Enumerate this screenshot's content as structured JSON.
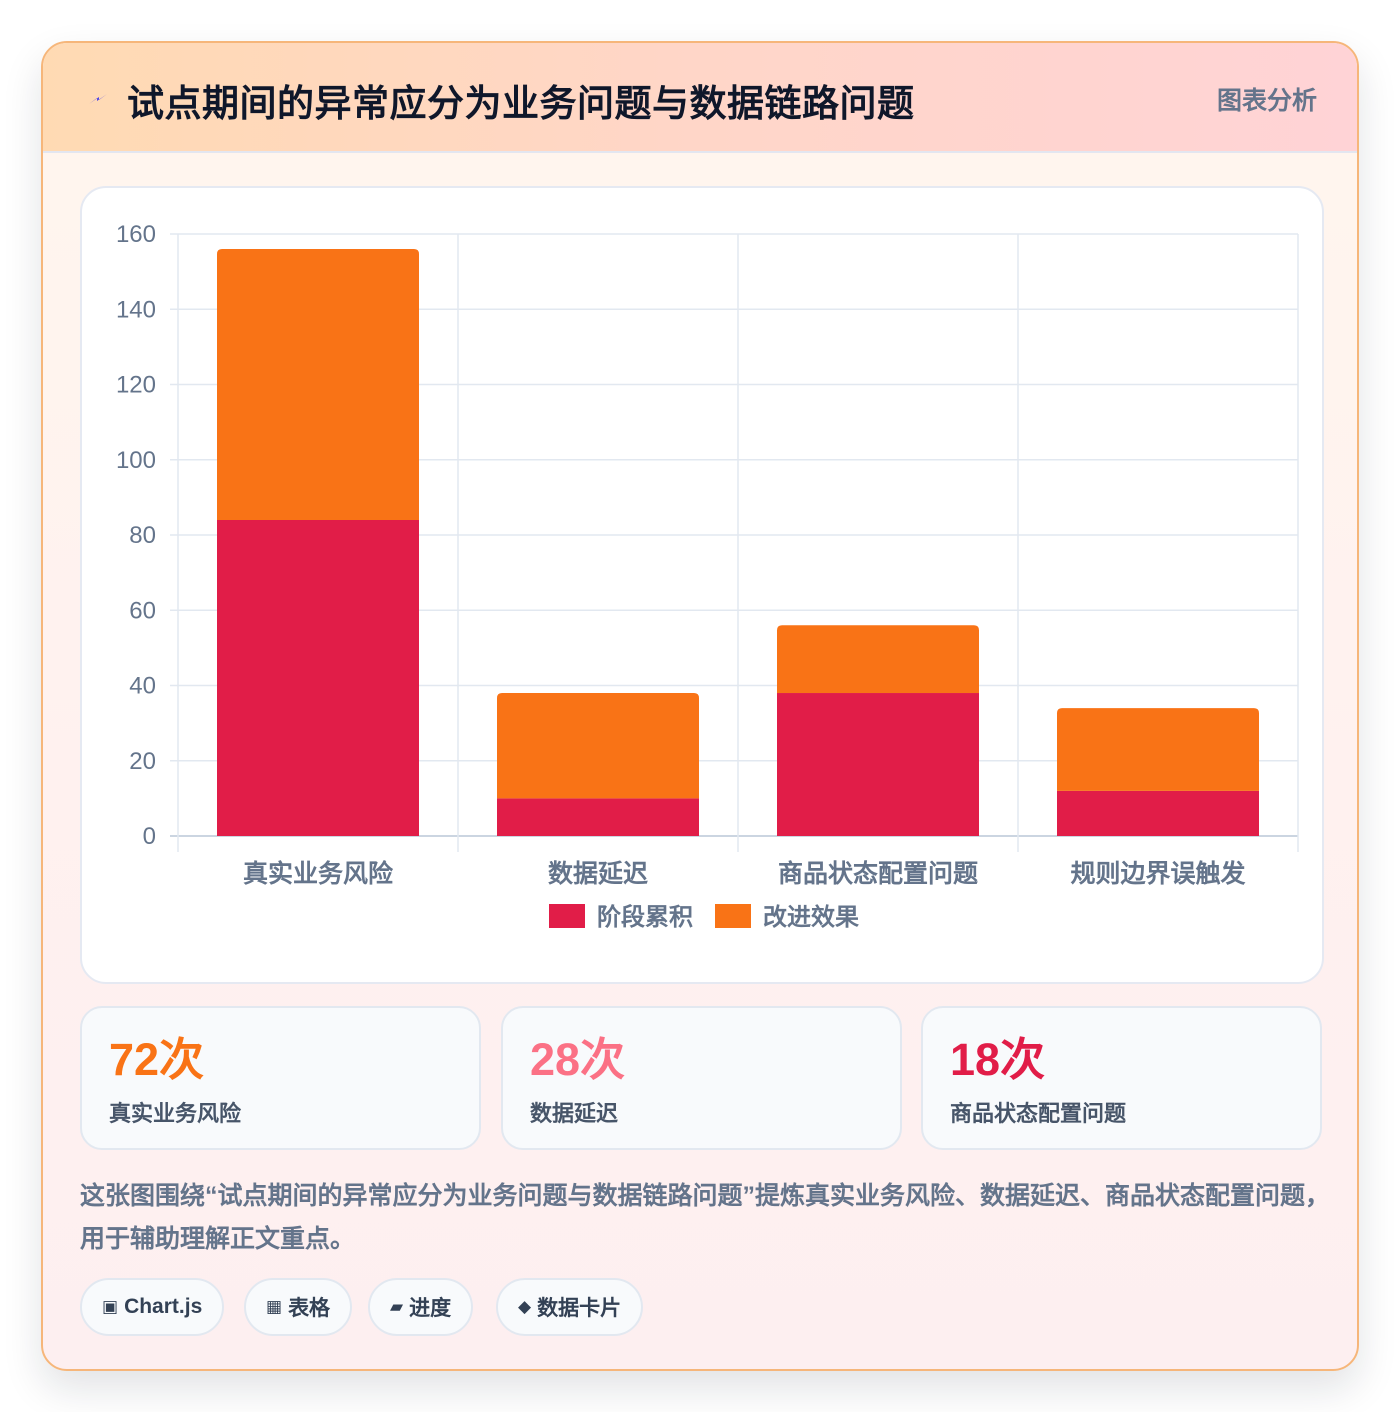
{
  "header": {
    "title": "试点期间的异常应分为业务问题与数据链路问题",
    "tag": "图表分析",
    "accent": "#4f46e5"
  },
  "chart_data": {
    "type": "bar",
    "stacked": true,
    "categories": [
      "真实业务风险",
      "数据延迟",
      "商品状态配置问题",
      "规则边界误触发"
    ],
    "series": [
      {
        "name": "阶段累积",
        "values": [
          84,
          10,
          38,
          12
        ],
        "color": "#e11d48"
      },
      {
        "name": "改进效果",
        "values": [
          72,
          28,
          18,
          22
        ],
        "color": "#f97316"
      }
    ],
    "ylim": [
      0,
      160
    ],
    "yticks": [
      0,
      20,
      40,
      60,
      80,
      100,
      120,
      140,
      160
    ],
    "grid": true,
    "legend": "bottom",
    "xlabel": "",
    "ylabel": ""
  },
  "stats": [
    {
      "value": "72次",
      "label": "真实业务风险",
      "color": "#f97316"
    },
    {
      "value": "28次",
      "label": "数据延迟",
      "color": "#fb7185"
    },
    {
      "value": "18次",
      "label": "商品状态配置问题",
      "color": "#e11d48"
    }
  ],
  "description": "这张图围绕“试点期间的异常应分为业务问题与数据链路问题”提炼真实业务风险、数据延迟、商品状态配置问题，用于辅助理解正文重点。",
  "tags": [
    {
      "icon": "▣",
      "icon_name": "chart-icon",
      "label": "Chart.js"
    },
    {
      "icon": "▦",
      "icon_name": "table-icon",
      "label": "表格"
    },
    {
      "icon": "▰",
      "icon_name": "progress-icon",
      "label": "进度"
    },
    {
      "icon": "◆",
      "icon_name": "data-card-icon",
      "label": "数据卡片"
    }
  ]
}
